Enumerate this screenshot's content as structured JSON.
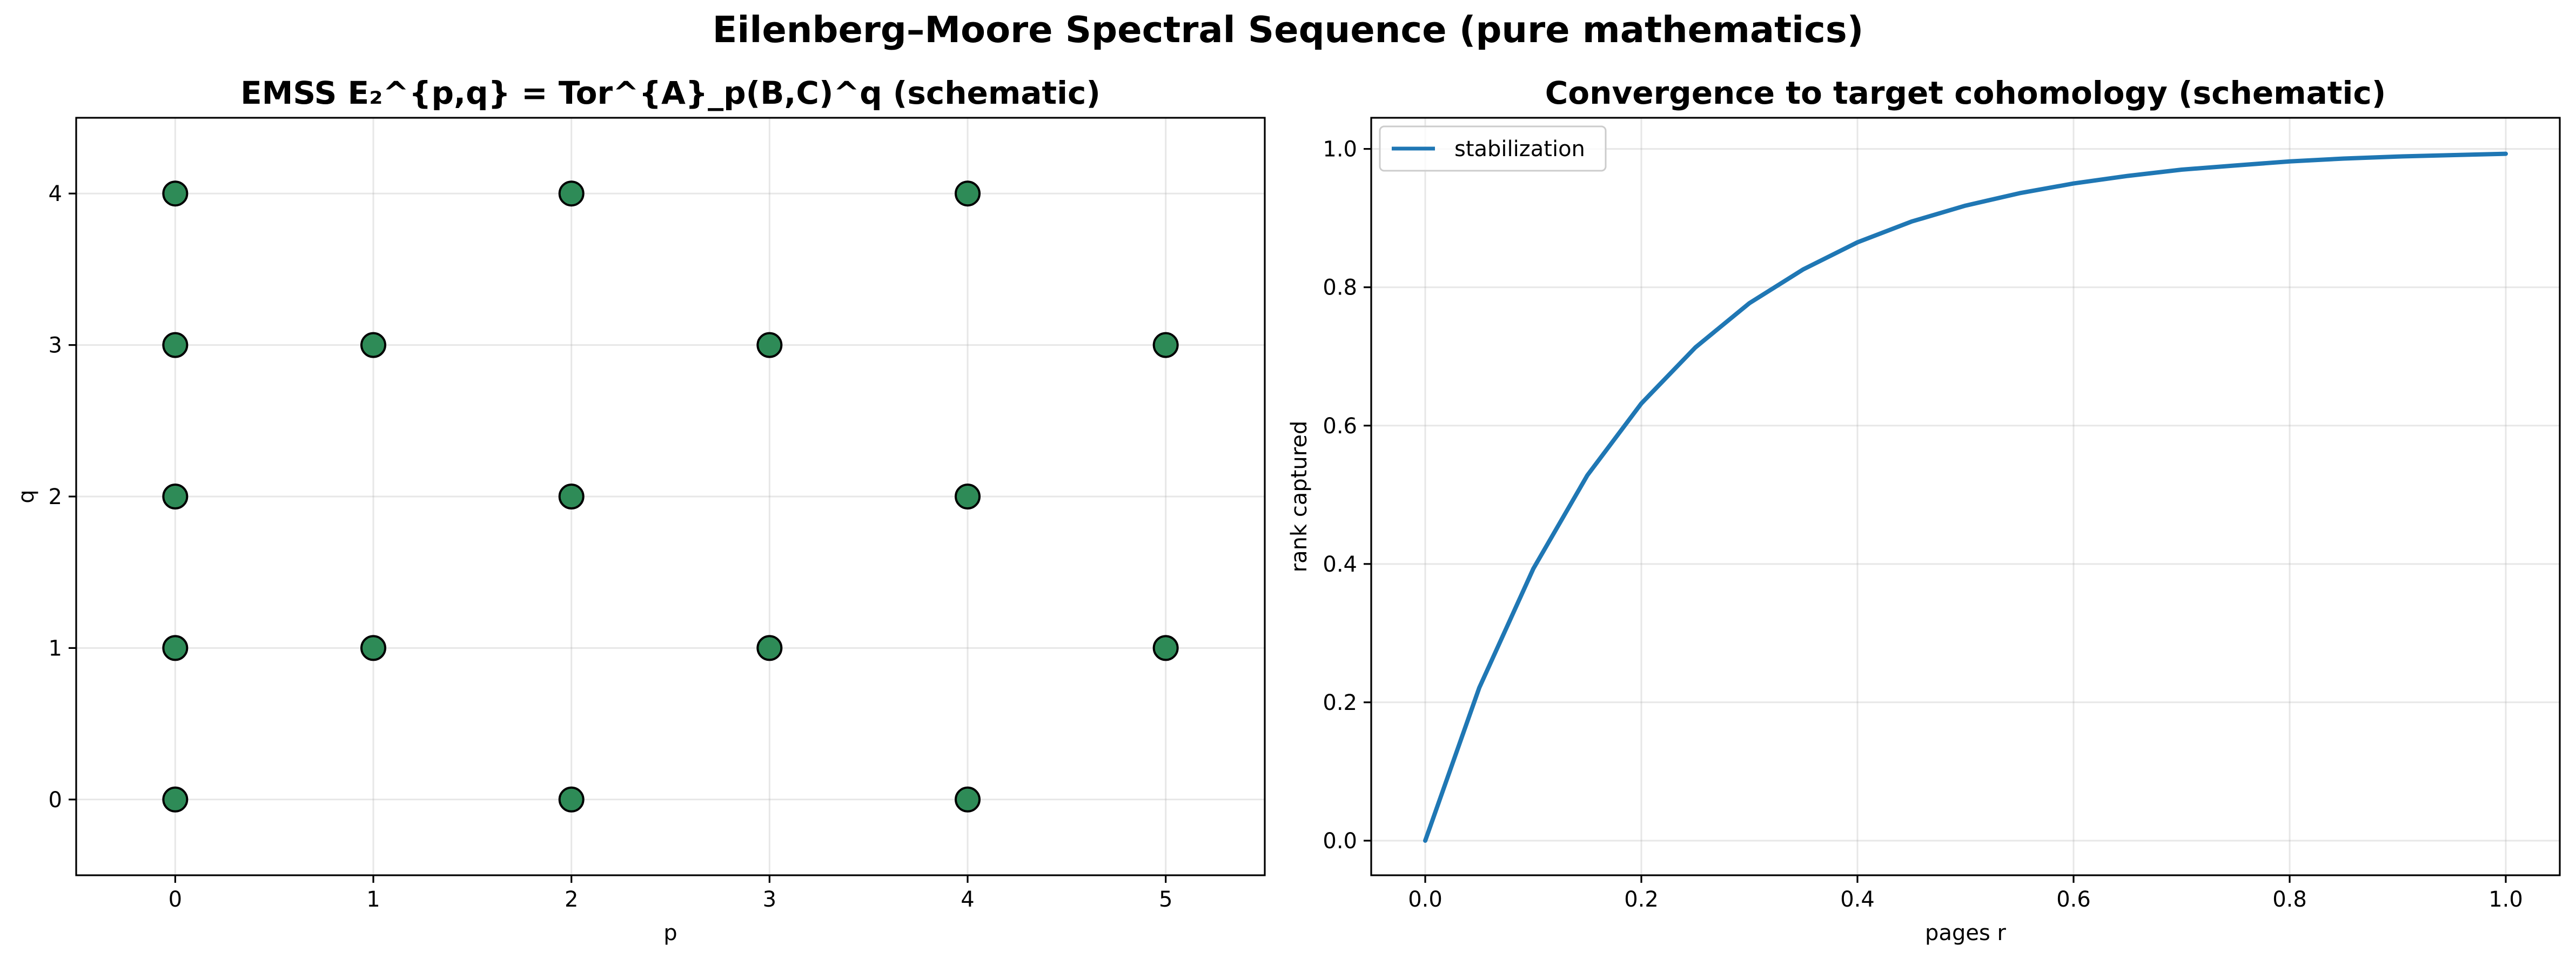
{
  "figure": {
    "title": "Eilenberg–Moore Spectral Sequence (pure mathematics)"
  },
  "chart_data": [
    {
      "type": "scatter",
      "title": "EMSS E₂^{p,q} = Tor^{A}_p(B,C)^q (schematic)",
      "xlabel": "p",
      "ylabel": "q",
      "xlim": [
        -0.5,
        5.5
      ],
      "ylim": [
        -0.5,
        4.5
      ],
      "xticks": [
        0,
        1,
        2,
        3,
        4,
        5
      ],
      "yticks": [
        0,
        1,
        2,
        3,
        4
      ],
      "grid": true,
      "marker_color": "#2e8b57",
      "marker_edge": "#000000",
      "points": [
        {
          "p": 0,
          "q": 0
        },
        {
          "p": 0,
          "q": 1
        },
        {
          "p": 0,
          "q": 2
        },
        {
          "p": 0,
          "q": 3
        },
        {
          "p": 0,
          "q": 4
        },
        {
          "p": 1,
          "q": 1
        },
        {
          "p": 1,
          "q": 3
        },
        {
          "p": 2,
          "q": 0
        },
        {
          "p": 2,
          "q": 2
        },
        {
          "p": 2,
          "q": 4
        },
        {
          "p": 3,
          "q": 1
        },
        {
          "p": 3,
          "q": 3
        },
        {
          "p": 4,
          "q": 0
        },
        {
          "p": 4,
          "q": 2
        },
        {
          "p": 4,
          "q": 4
        },
        {
          "p": 5,
          "q": 1
        },
        {
          "p": 5,
          "q": 3
        }
      ]
    },
    {
      "type": "line",
      "title": "Convergence to target cohomology (schematic)",
      "xlabel": "pages r",
      "ylabel": "rank captured",
      "xlim": [
        -0.05,
        1.05
      ],
      "ylim": [
        -0.05,
        1.045
      ],
      "xticks": [
        "0.0",
        "0.2",
        "0.4",
        "0.6",
        "0.8",
        "1.0"
      ],
      "yticks": [
        "0.0",
        "0.2",
        "0.4",
        "0.6",
        "0.8",
        "1.0"
      ],
      "grid": true,
      "legend": "top-left",
      "series": [
        {
          "name": "stabilization",
          "color": "#1f77b4",
          "x": [
            0.0,
            0.05,
            0.1,
            0.15,
            0.2,
            0.25,
            0.3,
            0.35,
            0.4,
            0.45,
            0.5,
            0.55,
            0.6,
            0.65,
            0.7,
            0.75,
            0.8,
            0.85,
            0.9,
            0.95,
            1.0
          ],
          "y": [
            0.0,
            0.221,
            0.393,
            0.528,
            0.632,
            0.713,
            0.777,
            0.826,
            0.865,
            0.895,
            0.918,
            0.936,
            0.95,
            0.961,
            0.97,
            0.976,
            0.982,
            0.986,
            0.989,
            0.991,
            0.993
          ]
        }
      ]
    }
  ]
}
